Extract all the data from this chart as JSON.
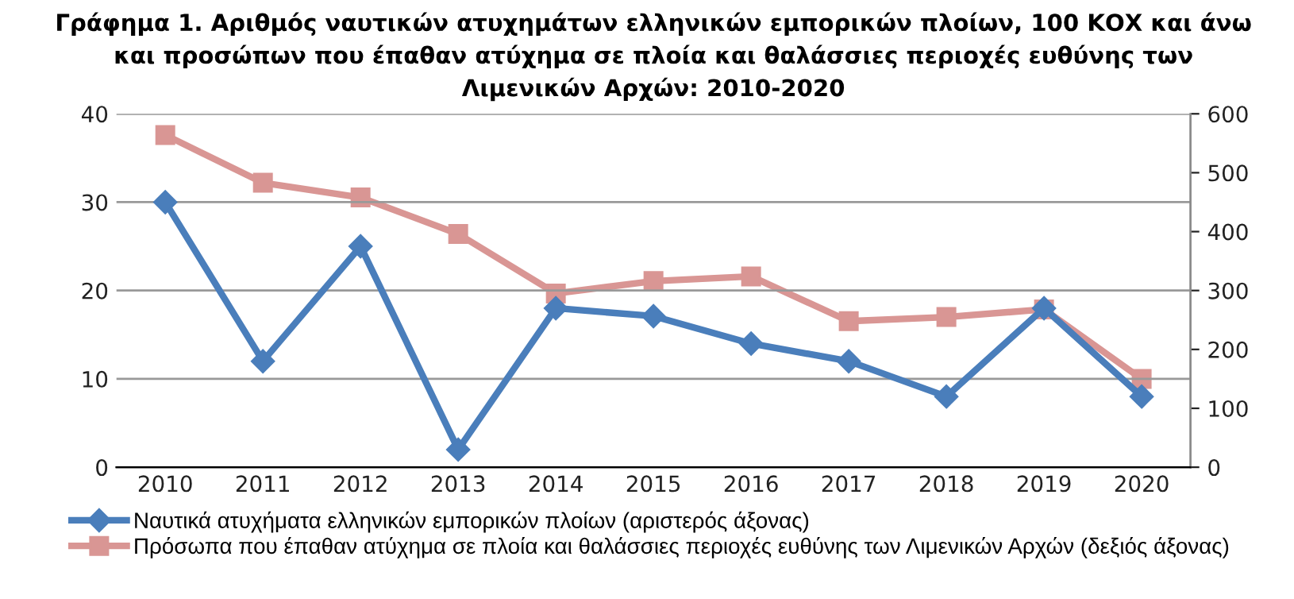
{
  "chart_data": {
    "type": "line",
    "title": "Γράφημα 1. Αριθμός ναυτικών ατυχημάτων ελληνικών εμπορικών πλοίων, 100 ΚΟΧ και άνω\nκαι προσώπων που έπαθαν ατύχημα σε πλοία και θαλάσσιες περιοχές ευθύνης των\nΛιμενικών Αρχών: 2010-2020",
    "categories": [
      "2010",
      "2011",
      "2012",
      "2013",
      "2014",
      "2015",
      "2016",
      "2017",
      "2018",
      "2019",
      "2020"
    ],
    "series": [
      {
        "name": "Ναυτικά ατυχήματα ελληνικών εμπορικών πλοίων (αριστερός άξονας)",
        "color": "#4a7ebb",
        "marker": "diamond",
        "values": [
          30,
          12,
          25,
          2,
          18,
          17.1,
          14,
          12,
          8,
          18,
          8
        ]
      },
      {
        "name": "Πρόσωπα που έπαθαν ατύχημα σε πλοία και θαλάσσιες περιοχές ευθύνης των Λιμενικών Αρχών (δεξιός άξονας)",
        "color": "#d99694",
        "marker": "square",
        "axis": "y2",
        "values": [
          564,
          483,
          458,
          396,
          295,
          316,
          324,
          248,
          255,
          268,
          150
        ]
      }
    ],
    "ylim": [
      0,
      40
    ],
    "yticks": [
      0,
      10,
      20,
      30,
      40
    ],
    "y2lim": [
      0,
      600
    ],
    "y2ticks": [
      0,
      100,
      200,
      300,
      400,
      500,
      600
    ],
    "grid": "y",
    "legend": "bottom",
    "line_style": "solid"
  }
}
